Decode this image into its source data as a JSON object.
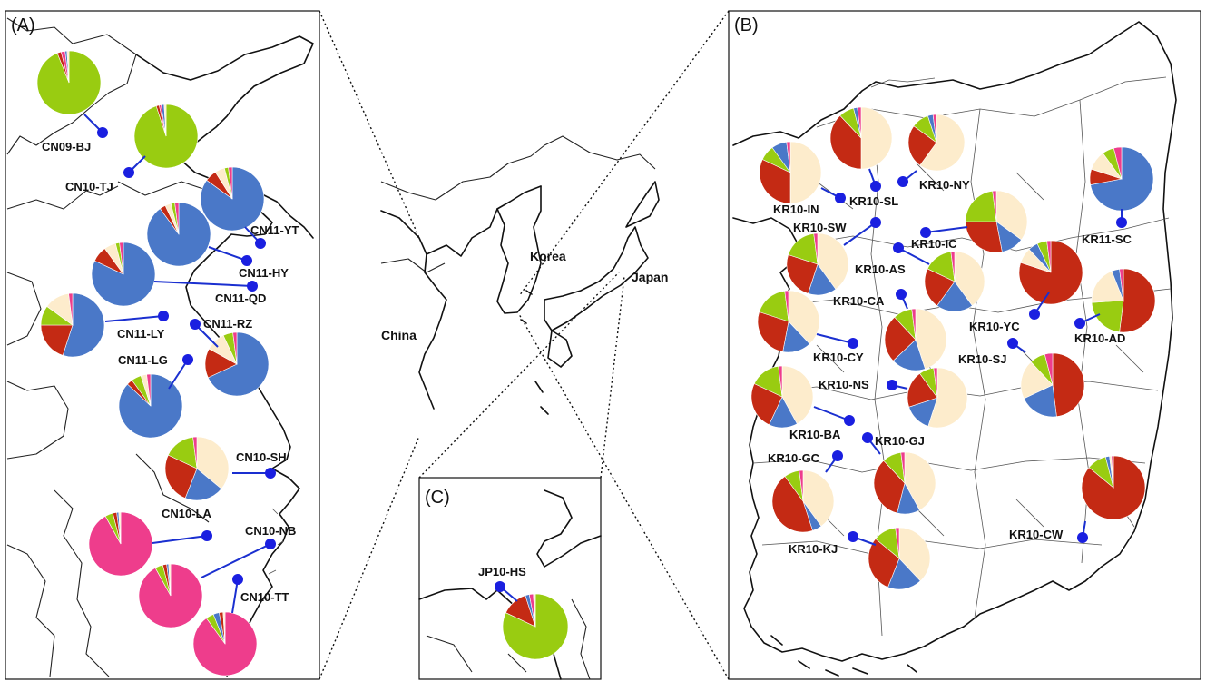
{
  "colors": {
    "green": "#99cc11",
    "blue": "#4a78c8",
    "cream": "#fdeccc",
    "red": "#c42a14",
    "pink": "#ee3d8c",
    "marker": "#1a1fe0",
    "leader": "#1a2fd0"
  },
  "panels": {
    "a": {
      "letter": "(A)"
    },
    "b": {
      "letter": "(B)"
    },
    "c": {
      "letter": "(C)"
    }
  },
  "countries": {
    "china": "China",
    "korea": "Korea",
    "japan": "Japan"
  },
  "sites": [
    {
      "id": "CN09-BJ",
      "label": "CN09-BJ",
      "slices": [
        {
          "c": "green",
          "v": 0.94
        },
        {
          "c": "red",
          "v": 0.02
        },
        {
          "c": "pink",
          "v": 0.02
        },
        {
          "c": "blue",
          "v": 0.01
        },
        {
          "c": "cream",
          "v": 0.01
        }
      ]
    },
    {
      "id": "CN10-TJ",
      "label": "CN10-TJ",
      "slices": [
        {
          "c": "green",
          "v": 0.95
        },
        {
          "c": "red",
          "v": 0.015
        },
        {
          "c": "pink",
          "v": 0.01
        },
        {
          "c": "blue",
          "v": 0.015
        },
        {
          "c": "cream",
          "v": 0.01
        }
      ]
    },
    {
      "id": "CN11-YT",
      "label": "CN11-YT",
      "slices": [
        {
          "c": "blue",
          "v": 0.85
        },
        {
          "c": "red",
          "v": 0.06
        },
        {
          "c": "cream",
          "v": 0.05
        },
        {
          "c": "green",
          "v": 0.02
        },
        {
          "c": "pink",
          "v": 0.02
        }
      ]
    },
    {
      "id": "CN11-HY",
      "label": "CN11-HY",
      "slices": [
        {
          "c": "blue",
          "v": 0.9
        },
        {
          "c": "red",
          "v": 0.03
        },
        {
          "c": "cream",
          "v": 0.03
        },
        {
          "c": "green",
          "v": 0.02
        },
        {
          "c": "pink",
          "v": 0.02
        }
      ]
    },
    {
      "id": "CN11-QD",
      "label": "CN11-QD",
      "slices": [
        {
          "c": "blue",
          "v": 0.82
        },
        {
          "c": "red",
          "v": 0.08
        },
        {
          "c": "cream",
          "v": 0.06
        },
        {
          "c": "green",
          "v": 0.02
        },
        {
          "c": "pink",
          "v": 0.02
        }
      ]
    },
    {
      "id": "CN11-LY",
      "label": "CN11-LY",
      "slices": [
        {
          "c": "blue",
          "v": 0.55
        },
        {
          "c": "red",
          "v": 0.2
        },
        {
          "c": "green",
          "v": 0.1
        },
        {
          "c": "cream",
          "v": 0.13
        },
        {
          "c": "pink",
          "v": 0.02
        }
      ]
    },
    {
      "id": "CN11-RZ",
      "label": "CN11-RZ",
      "slices": [
        {
          "c": "blue",
          "v": 0.68
        },
        {
          "c": "red",
          "v": 0.15
        },
        {
          "c": "cream",
          "v": 0.1
        },
        {
          "c": "green",
          "v": 0.05
        },
        {
          "c": "pink",
          "v": 0.02
        }
      ]
    },
    {
      "id": "CN11-LG",
      "label": "CN11-LG",
      "slices": [
        {
          "c": "blue",
          "v": 0.87
        },
        {
          "c": "red",
          "v": 0.03
        },
        {
          "c": "green",
          "v": 0.05
        },
        {
          "c": "cream",
          "v": 0.03
        },
        {
          "c": "pink",
          "v": 0.02
        }
      ]
    },
    {
      "id": "CN10-SH",
      "label": "CN10-SH",
      "slices": [
        {
          "c": "cream",
          "v": 0.36
        },
        {
          "c": "blue",
          "v": 0.2
        },
        {
          "c": "red",
          "v": 0.26
        },
        {
          "c": "green",
          "v": 0.16
        },
        {
          "c": "pink",
          "v": 0.02
        }
      ]
    },
    {
      "id": "CN10-LA",
      "label": "CN10-LA",
      "slices": [
        {
          "c": "pink",
          "v": 0.92
        },
        {
          "c": "green",
          "v": 0.04
        },
        {
          "c": "red",
          "v": 0.02
        },
        {
          "c": "blue",
          "v": 0.01
        },
        {
          "c": "cream",
          "v": 0.01
        }
      ]
    },
    {
      "id": "CN10-NB",
      "label": "CN10-NB",
      "slices": [
        {
          "c": "pink",
          "v": 0.92
        },
        {
          "c": "green",
          "v": 0.04
        },
        {
          "c": "red",
          "v": 0.02
        },
        {
          "c": "blue",
          "v": 0.01
        },
        {
          "c": "cream",
          "v": 0.01
        }
      ]
    },
    {
      "id": "CN10-TT",
      "label": "CN10-TT",
      "slices": [
        {
          "c": "pink",
          "v": 0.9
        },
        {
          "c": "green",
          "v": 0.04
        },
        {
          "c": "blue",
          "v": 0.03
        },
        {
          "c": "red",
          "v": 0.02
        },
        {
          "c": "cream",
          "v": 0.01
        }
      ]
    },
    {
      "id": "JP10-HS",
      "label": "JP10-HS",
      "slices": [
        {
          "c": "green",
          "v": 0.82
        },
        {
          "c": "red",
          "v": 0.13
        },
        {
          "c": "blue",
          "v": 0.02
        },
        {
          "c": "pink",
          "v": 0.02
        },
        {
          "c": "cream",
          "v": 0.01
        }
      ]
    },
    {
      "id": "KR10-SL",
      "label": "KR10-SL",
      "slices": [
        {
          "c": "cream",
          "v": 0.5
        },
        {
          "c": "red",
          "v": 0.38
        },
        {
          "c": "green",
          "v": 0.08
        },
        {
          "c": "blue",
          "v": 0.02
        },
        {
          "c": "pink",
          "v": 0.02
        }
      ]
    },
    {
      "id": "KR10-NY",
      "label": "KR10-NY",
      "slices": [
        {
          "c": "cream",
          "v": 0.6
        },
        {
          "c": "red",
          "v": 0.25
        },
        {
          "c": "green",
          "v": 0.1
        },
        {
          "c": "blue",
          "v": 0.03
        },
        {
          "c": "pink",
          "v": 0.02
        }
      ]
    },
    {
      "id": "KR10-IN",
      "label": "KR10-IN",
      "slices": [
        {
          "c": "cream",
          "v": 0.5
        },
        {
          "c": "red",
          "v": 0.32
        },
        {
          "c": "green",
          "v": 0.08
        },
        {
          "c": "blue",
          "v": 0.08
        },
        {
          "c": "pink",
          "v": 0.02
        }
      ]
    },
    {
      "id": "KR11-SC",
      "label": "KR11-SC",
      "slices": [
        {
          "c": "blue",
          "v": 0.72
        },
        {
          "c": "red",
          "v": 0.08
        },
        {
          "c": "cream",
          "v": 0.1
        },
        {
          "c": "green",
          "v": 0.06
        },
        {
          "c": "pink",
          "v": 0.04
        }
      ]
    },
    {
      "id": "KR10-SW",
      "label": "KR10-SW",
      "slices": [
        {
          "c": "cream",
          "v": 0.4
        },
        {
          "c": "blue",
          "v": 0.15
        },
        {
          "c": "red",
          "v": 0.25
        },
        {
          "c": "green",
          "v": 0.18
        },
        {
          "c": "pink",
          "v": 0.02
        }
      ]
    },
    {
      "id": "KR10-IC",
      "label": "KR10-IC",
      "slices": [
        {
          "c": "cream",
          "v": 0.35
        },
        {
          "c": "blue",
          "v": 0.12
        },
        {
          "c": "red",
          "v": 0.28
        },
        {
          "c": "green",
          "v": 0.23
        },
        {
          "c": "pink",
          "v": 0.02
        }
      ]
    },
    {
      "id": "KR10-AS",
      "label": "KR10-AS",
      "slices": [
        {
          "c": "cream",
          "v": 0.4
        },
        {
          "c": "blue",
          "v": 0.2
        },
        {
          "c": "red",
          "v": 0.22
        },
        {
          "c": "green",
          "v": 0.16
        },
        {
          "c": "pink",
          "v": 0.02
        }
      ]
    },
    {
      "id": "KR10-CA",
      "label": "KR10-CA",
      "slices": [
        {
          "c": "cream",
          "v": 0.45
        },
        {
          "c": "blue",
          "v": 0.18
        },
        {
          "c": "red",
          "v": 0.25
        },
        {
          "c": "green",
          "v": 0.1
        },
        {
          "c": "pink",
          "v": 0.02
        }
      ]
    },
    {
      "id": "KR10-YC",
      "label": "KR10-YC",
      "slices": [
        {
          "c": "red",
          "v": 0.8
        },
        {
          "c": "cream",
          "v": 0.08
        },
        {
          "c": "blue",
          "v": 0.05
        },
        {
          "c": "green",
          "v": 0.05
        },
        {
          "c": "pink",
          "v": 0.02
        }
      ]
    },
    {
      "id": "KR10-AD",
      "label": "KR10-AD",
      "slices": [
        {
          "c": "red",
          "v": 0.52
        },
        {
          "c": "green",
          "v": 0.22
        },
        {
          "c": "cream",
          "v": 0.2
        },
        {
          "c": "blue",
          "v": 0.04
        },
        {
          "c": "pink",
          "v": 0.02
        }
      ]
    },
    {
      "id": "KR10-CY",
      "label": "KR10-CY",
      "slices": [
        {
          "c": "cream",
          "v": 0.38
        },
        {
          "c": "blue",
          "v": 0.15
        },
        {
          "c": "red",
          "v": 0.27
        },
        {
          "c": "green",
          "v": 0.18
        },
        {
          "c": "pink",
          "v": 0.02
        }
      ]
    },
    {
      "id": "KR10-SJ",
      "label": "KR10-SJ",
      "slices": [
        {
          "c": "red",
          "v": 0.48
        },
        {
          "c": "blue",
          "v": 0.2
        },
        {
          "c": "cream",
          "v": 0.2
        },
        {
          "c": "green",
          "v": 0.08
        },
        {
          "c": "pink",
          "v": 0.04
        }
      ]
    },
    {
      "id": "KR10-NS",
      "label": "KR10-NS",
      "slices": [
        {
          "c": "cream",
          "v": 0.55
        },
        {
          "c": "blue",
          "v": 0.15
        },
        {
          "c": "red",
          "v": 0.2
        },
        {
          "c": "green",
          "v": 0.08
        },
        {
          "c": "pink",
          "v": 0.02
        }
      ]
    },
    {
      "id": "KR10-BA",
      "label": "KR10-BA",
      "slices": [
        {
          "c": "cream",
          "v": 0.42
        },
        {
          "c": "blue",
          "v": 0.15
        },
        {
          "c": "red",
          "v": 0.25
        },
        {
          "c": "green",
          "v": 0.16
        },
        {
          "c": "pink",
          "v": 0.02
        }
      ]
    },
    {
      "id": "KR10-GJ",
      "label": "KR10-GJ",
      "slices": [
        {
          "c": "cream",
          "v": 0.42
        },
        {
          "c": "blue",
          "v": 0.12
        },
        {
          "c": "red",
          "v": 0.34
        },
        {
          "c": "green",
          "v": 0.1
        },
        {
          "c": "pink",
          "v": 0.02
        }
      ]
    },
    {
      "id": "KR10-GC",
      "label": "KR10-GC",
      "slices": [
        {
          "c": "cream",
          "v": 0.4
        },
        {
          "c": "blue",
          "v": 0.05
        },
        {
          "c": "red",
          "v": 0.45
        },
        {
          "c": "green",
          "v": 0.08
        },
        {
          "c": "pink",
          "v": 0.02
        }
      ]
    },
    {
      "id": "KR10-CW",
      "label": "KR10-CW",
      "slices": [
        {
          "c": "red",
          "v": 0.86
        },
        {
          "c": "green",
          "v": 0.1
        },
        {
          "c": "blue",
          "v": 0.02
        },
        {
          "c": "cream",
          "v": 0.01
        },
        {
          "c": "pink",
          "v": 0.01
        }
      ]
    },
    {
      "id": "KR10-KJ",
      "label": "KR10-KJ",
      "slices": [
        {
          "c": "cream",
          "v": 0.38
        },
        {
          "c": "blue",
          "v": 0.18
        },
        {
          "c": "red",
          "v": 0.3
        },
        {
          "c": "green",
          "v": 0.12
        },
        {
          "c": "pink",
          "v": 0.02
        }
      ]
    }
  ]
}
